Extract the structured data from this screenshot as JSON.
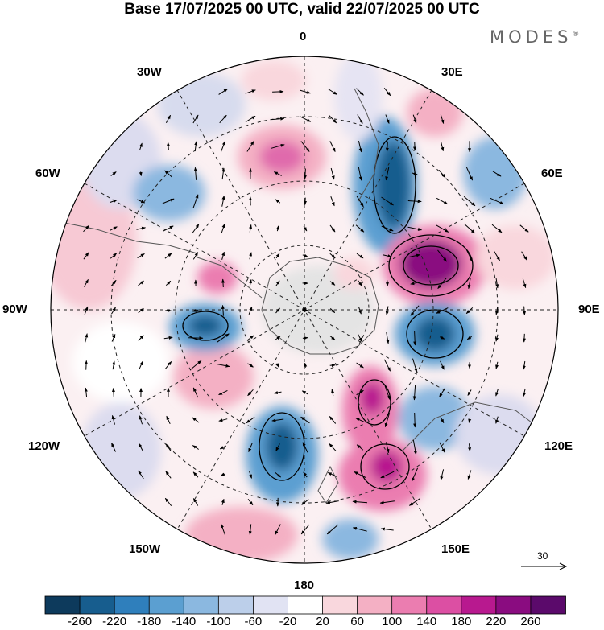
{
  "title": "Base 17/07/2025 00 UTC, valid 22/07/2025 00 UTC",
  "brand": "MODES",
  "brand_mark": "®",
  "longitude_labels": {
    "lon_0": "0",
    "lon_30e": "30E",
    "lon_60e": "60E",
    "lon_90e": "90E",
    "lon_120e": "120E",
    "lon_150e": "150E",
    "lon_180": "180",
    "lon_150w": "150W",
    "lon_120w": "120W",
    "lon_90w": "90W",
    "lon_60w": "60W",
    "lon_30w": "30W"
  },
  "vector_scale": {
    "label": "30",
    "arrow_icon": "arrow-right-icon"
  },
  "colorbar": {
    "ticks": [
      "-260",
      "-220",
      "-180",
      "-140",
      "-100",
      "-60",
      "-20",
      "20",
      "60",
      "100",
      "140",
      "180",
      "220",
      "260"
    ],
    "colors": [
      "#0d3a5c",
      "#175d8e",
      "#2f7fbc",
      "#5b9fd1",
      "#8bb8e0",
      "#bccfea",
      "#e1e3f3",
      "#ffffff",
      "#f9d7dd",
      "#f4b0c4",
      "#eb7db0",
      "#dc4fa3",
      "#b8198f",
      "#8a0c80",
      "#5b0a6b"
    ]
  }
}
